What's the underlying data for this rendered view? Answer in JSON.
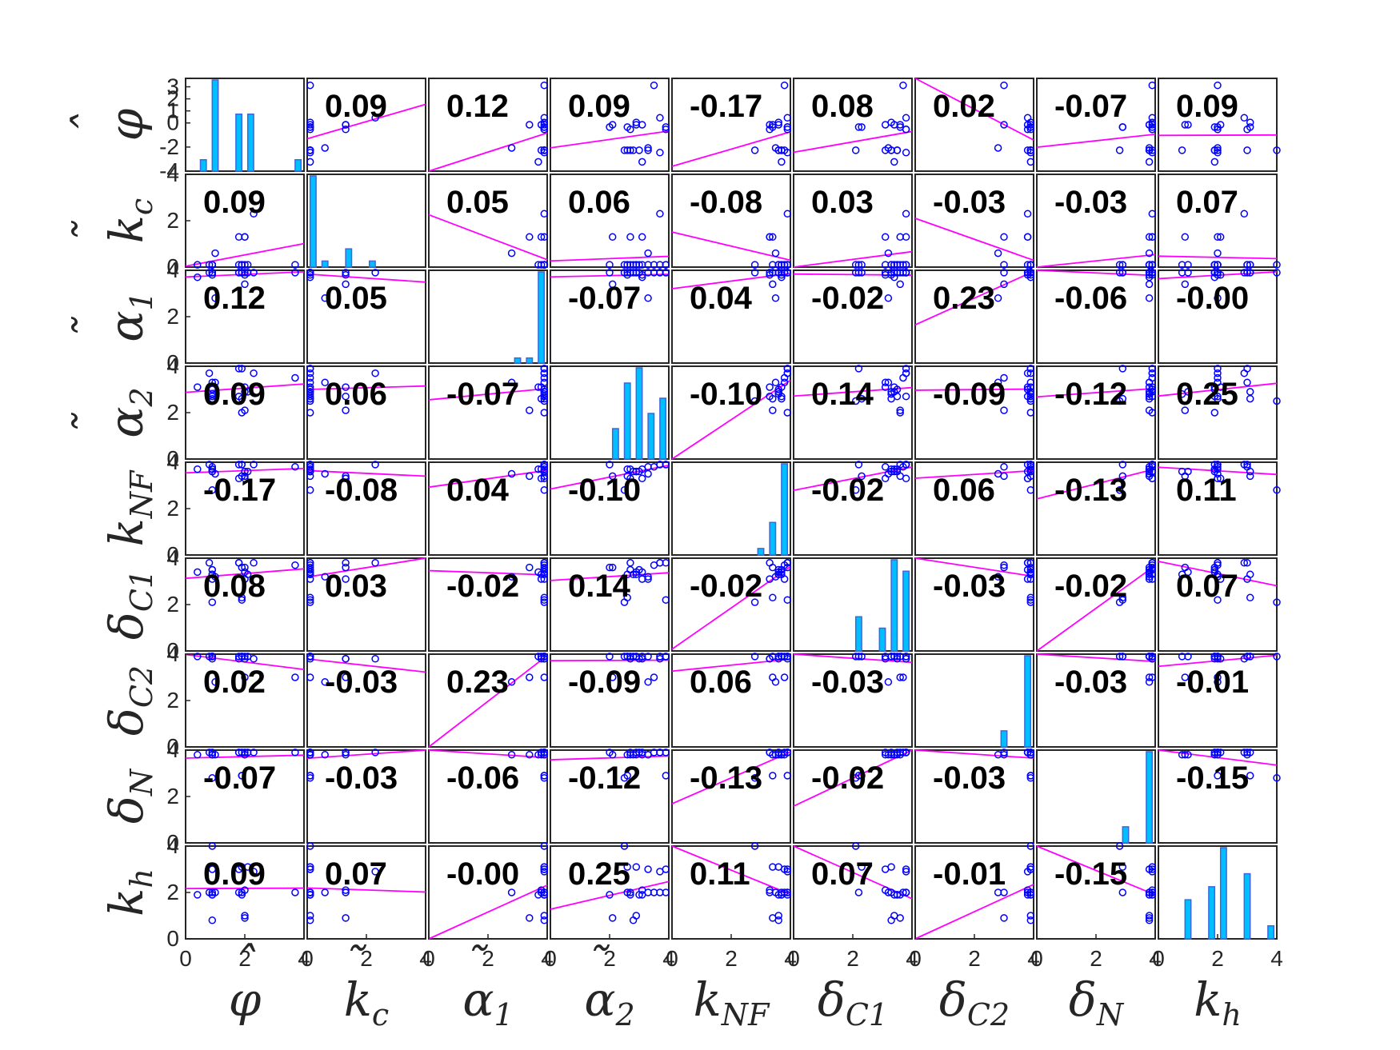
{
  "chart_data": {
    "type": "scatter-matrix",
    "variables": [
      {
        "key": "phi",
        "base": "φ",
        "accent": "ˆ",
        "sub": ""
      },
      {
        "key": "kc",
        "base": "k",
        "accent": "˜",
        "sub": "c"
      },
      {
        "key": "alpha1",
        "base": "α",
        "accent": "˜",
        "sub": "1"
      },
      {
        "key": "alpha2",
        "base": "α",
        "accent": "˜",
        "sub": "2"
      },
      {
        "key": "kNF",
        "base": "k",
        "accent": "",
        "sub": "NF"
      },
      {
        "key": "deltaC1",
        "base": "δ",
        "accent": "",
        "sub": "C1"
      },
      {
        "key": "deltaC2",
        "base": "δ",
        "accent": "",
        "sub": "C2"
      },
      {
        "key": "deltaN",
        "base": "δ",
        "accent": "",
        "sub": "N"
      },
      {
        "key": "kh",
        "base": "k",
        "accent": "",
        "sub": "h"
      }
    ],
    "correlations": [
      [
        null,
        "0.09",
        "0.12",
        "0.09",
        "-0.17",
        "0.08",
        "0.02",
        "-0.07",
        "0.09"
      ],
      [
        "0.09",
        null,
        "0.05",
        "0.06",
        "-0.08",
        "0.03",
        "-0.03",
        "-0.03",
        "0.07"
      ],
      [
        "0.12",
        "0.05",
        null,
        "-0.07",
        "0.04",
        "-0.02",
        "0.23",
        "-0.06",
        "-0.00"
      ],
      [
        "0.09",
        "0.06",
        "-0.07",
        null,
        "-0.10",
        "0.14",
        "-0.09",
        "-0.12",
        "0.25"
      ],
      [
        "-0.17",
        "-0.08",
        "0.04",
        "-0.10",
        null,
        "-0.02",
        "0.06",
        "-0.13",
        "0.11"
      ],
      [
        "0.08",
        "0.03",
        "-0.02",
        "0.14",
        "-0.02",
        null,
        "-0.03",
        "-0.02",
        "0.07"
      ],
      [
        "0.02",
        "-0.03",
        "0.23",
        "-0.09",
        "0.06",
        "-0.03",
        null,
        "-0.03",
        "-0.01"
      ],
      [
        "-0.07",
        "-0.03",
        "-0.06",
        "-0.12",
        "-0.13",
        "-0.02",
        "-0.03",
        null,
        "-0.15"
      ],
      [
        "0.09",
        "0.07",
        "-0.00",
        "0.25",
        "0.11",
        "0.07",
        "-0.01",
        "-0.15",
        null
      ]
    ],
    "axis_range": [
      0,
      4
    ],
    "x_tick_labels": [
      "0",
      "2",
      "4"
    ],
    "y_tick_labels": [
      "0",
      "2",
      "4"
    ],
    "phi_y_tick_labels": [
      "-4",
      "-2",
      "0",
      "1",
      "2",
      "3"
    ],
    "samples": {
      "phi": [
        0.9,
        0.9,
        0.9,
        1.8,
        1.9,
        2.0,
        2.1,
        0.4,
        2.3,
        0.9,
        1.0,
        1.9,
        0.9,
        1.8,
        2.0,
        0.9,
        3.7,
        1.9,
        0.8,
        2.0
      ],
      "kc": [
        0.1,
        0.1,
        0.1,
        1.3,
        0.1,
        1.3,
        0.1,
        0.1,
        2.3,
        0.1,
        0.6,
        0.1,
        0.1,
        0.1,
        1.3,
        0.1,
        0.1,
        0.1,
        0.1,
        0.1
      ],
      "alpha1": [
        3.8,
        3.9,
        3.9,
        3.9,
        3.9,
        3.4,
        3.9,
        3.7,
        3.9,
        3.9,
        2.8,
        3.9,
        3.9,
        3.9,
        3.8,
        3.9,
        3.9,
        3.9,
        3.9,
        3.9
      ],
      "alpha2": [
        2.6,
        3.0,
        3.3,
        2.7,
        3.9,
        2.1,
        2.9,
        3.1,
        3.7,
        2.5,
        3.3,
        2.0,
        2.8,
        3.9,
        3.1,
        2.7,
        3.5,
        2.6,
        3.7,
        2.9
      ],
      "kNF": [
        3.7,
        3.6,
        3.8,
        3.3,
        3.9,
        3.4,
        3.6,
        3.7,
        3.9,
        2.8,
        3.5,
        3.9,
        3.6,
        3.9,
        3.3,
        3.7,
        3.8,
        3.4,
        3.9,
        3.6
      ],
      "deltaC1": [
        3.3,
        3.5,
        3.1,
        3.8,
        2.2,
        3.6,
        3.3,
        3.4,
        3.8,
        2.1,
        3.2,
        3.6,
        3.3,
        3.8,
        3.1,
        3.5,
        3.7,
        2.3,
        3.8,
        3.4
      ],
      "deltaC2": [
        3.9,
        3.8,
        3.9,
        3.8,
        3.9,
        3.0,
        3.9,
        3.9,
        3.8,
        3.9,
        2.8,
        3.9,
        3.9,
        3.9,
        3.8,
        3.9,
        3.0,
        3.9,
        3.9,
        3.9
      ],
      "deltaN": [
        3.8,
        3.9,
        3.8,
        3.9,
        2.9,
        3.8,
        3.9,
        3.8,
        3.9,
        2.8,
        3.8,
        3.9,
        3.8,
        3.9,
        3.9,
        3.8,
        3.9,
        2.9,
        3.9,
        3.8
      ],
      "kh": [
        2.0,
        1.9,
        3.0,
        2.0,
        2.0,
        0.9,
        3.1,
        1.9,
        2.9,
        4.0,
        2.0,
        1.9,
        0.8,
        3.0,
        2.1,
        1.9,
        2.0,
        3.1,
        2.0,
        1.0
      ]
    },
    "colors": {
      "points": "#0000ff",
      "fit_line": "#ff00ff",
      "hist_fill": "#00bfff",
      "hist_edge": "#3f67d9",
      "frame": "#262626"
    }
  }
}
